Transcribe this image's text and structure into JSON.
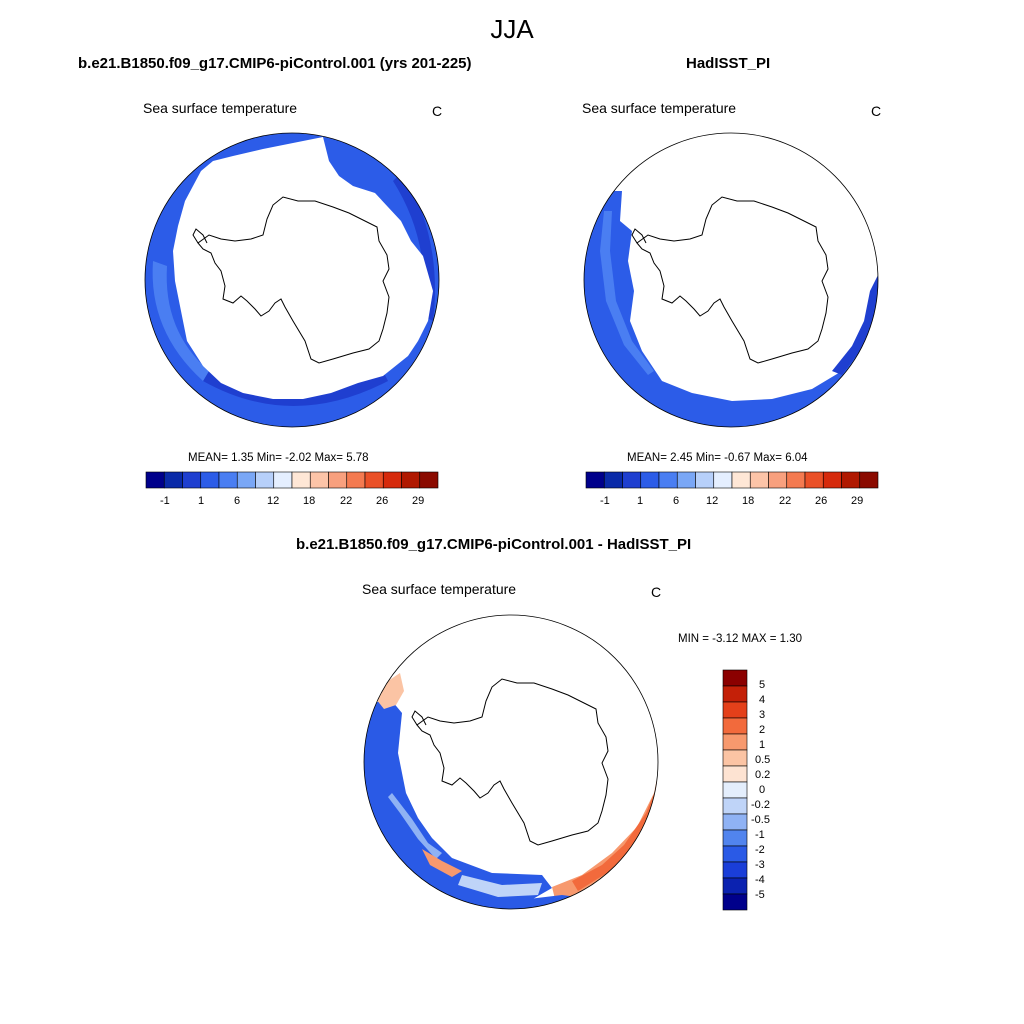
{
  "main_title": "JJA",
  "palette_abs": [
    "#00008b",
    "#0a2aa8",
    "#1f3fd0",
    "#2c5ce8",
    "#4a7ef2",
    "#7aa7f6",
    "#b7d0fa",
    "#e5efff",
    "#ffe7d6",
    "#fcc4a8",
    "#f8a07e",
    "#f47a50",
    "#ea5027",
    "#d62a0c",
    "#b01800",
    "#8a0a00"
  ],
  "palette_diff": [
    "#00008b",
    "#0b22b0",
    "#1a3ed8",
    "#2a5ae6",
    "#5184ee",
    "#8fb2f4",
    "#bfd4f8",
    "#e4eefc",
    "#fde3d2",
    "#fbc4a4",
    "#f7996e",
    "#f26a3c",
    "#e4401a",
    "#c42008",
    "#8b0000"
  ],
  "panels": [
    {
      "title": "b.e21.B1850.f09_g17.CMIP6-piControl.001 (yrs 201-225)",
      "var_label": "Sea surface temperature",
      "unit": "C",
      "stats": "MEAN=   1.35  Min=  -2.02  Max=   5.78",
      "colorbar_ticks": [
        "-1",
        "1",
        "6",
        "12",
        "18",
        "22",
        "26",
        "29"
      ]
    },
    {
      "title": "HadISST_PI",
      "var_label": "Sea surface temperature",
      "unit": "C",
      "stats": "MEAN=   2.45  Min=  -0.67  Max=   6.04",
      "colorbar_ticks": [
        "-1",
        "1",
        "6",
        "12",
        "18",
        "22",
        "26",
        "29"
      ]
    },
    {
      "title": "b.e21.B1850.f09_g17.CMIP6-piControl.001 - HadISST_PI",
      "var_label": "Sea surface temperature",
      "unit": "C",
      "stats": "MIN =  -3.12 MAX =   1.30",
      "colorbar_ticks": [
        "5",
        "4",
        "3",
        "2",
        "1",
        "0.5",
        "0.2",
        "0",
        "-0.2",
        "-0.5",
        "-1",
        "-2",
        "-3",
        "-4",
        "-5"
      ]
    }
  ]
}
